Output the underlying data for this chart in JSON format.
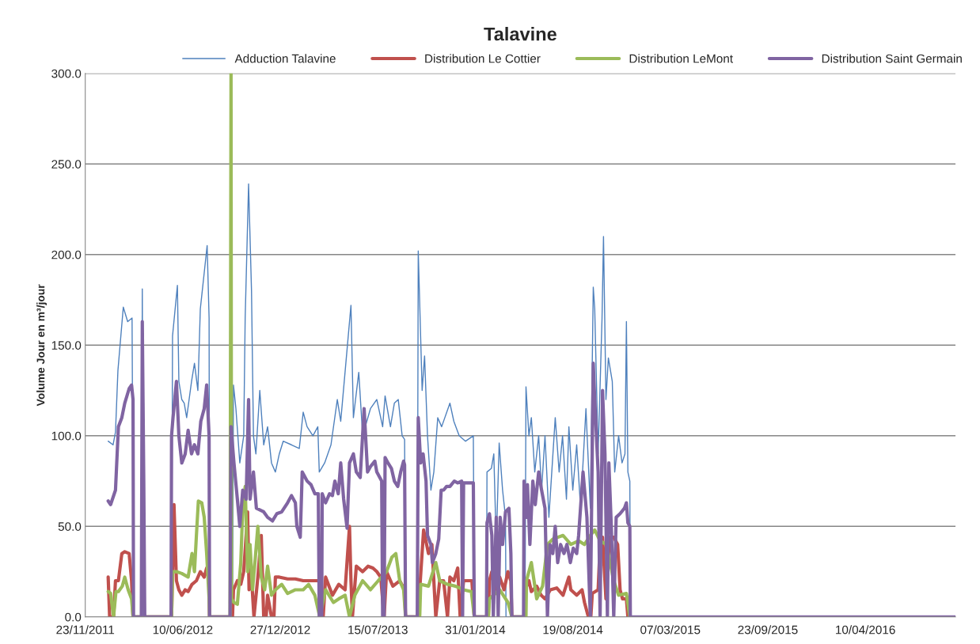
{
  "chart_data": {
    "type": "line",
    "title": "Talavine",
    "ylabel": "Volume Jour en m³/jour",
    "xlim": [
      "2011-11-23",
      "2016-10-12"
    ],
    "xticks": [
      {
        "value": "2011-11-23",
        "label": "23/11/2011"
      },
      {
        "value": "2012-06-10",
        "label": "10/06/2012"
      },
      {
        "value": "2012-12-27",
        "label": "27/12/2012"
      },
      {
        "value": "2013-07-15",
        "label": "15/07/2013"
      },
      {
        "value": "2014-01-31",
        "label": "31/01/2014"
      },
      {
        "value": "2014-08-19",
        "label": "19/08/2014"
      },
      {
        "value": "2015-03-07",
        "label": "07/03/2015"
      },
      {
        "value": "2015-09-23",
        "label": "23/09/2015"
      },
      {
        "value": "2016-04-10",
        "label": "10/04/2016"
      }
    ],
    "ylim": [
      0,
      300
    ],
    "yticks": [
      {
        "value": 0,
        "label": "0.0"
      },
      {
        "value": 50,
        "label": "50.0"
      },
      {
        "value": 100,
        "label": "100.0"
      },
      {
        "value": 150,
        "label": "150.0"
      },
      {
        "value": 200,
        "label": "200.0"
      },
      {
        "value": 250,
        "label": "250.0"
      },
      {
        "value": 300,
        "label": "300.0"
      }
    ],
    "grid": "y",
    "legend": "top",
    "marker": "none",
    "line_style": "solid",
    "series": [
      {
        "name": "Adduction Talavine",
        "color": "#4f81bd",
        "x": [
          "2012-01-09",
          "2012-01-19",
          "2012-01-24",
          "2012-01-29",
          "2012-02-09",
          "2012-02-18",
          "2012-02-27",
          "2012-03-01",
          "2012-03-17",
          "2012-03-19",
          "2012-03-21",
          "2012-05-18",
          "2012-05-20",
          "2012-05-30",
          "2012-06-02",
          "2012-06-08",
          "2012-06-13",
          "2012-06-18",
          "2012-06-28",
          "2012-07-04",
          "2012-07-11",
          "2012-07-16",
          "2012-07-24",
          "2012-07-30",
          "2012-08-03",
          "2012-08-04",
          "2012-09-20",
          "2012-09-22",
          "2012-09-27",
          "2012-10-05",
          "2012-10-13",
          "2012-10-16",
          "2012-10-23",
          "2012-10-29",
          "2012-11-02",
          "2012-11-07",
          "2012-11-15",
          "2012-11-23",
          "2012-12-01",
          "2012-12-09",
          "2012-12-17",
          "2012-12-25",
          "2013-01-02",
          "2013-01-19",
          "2013-02-04",
          "2013-02-12",
          "2013-02-20",
          "2013-03-04",
          "2013-03-14",
          "2013-03-17",
          "2013-03-28",
          "2013-04-10",
          "2013-04-23",
          "2013-04-30",
          "2013-05-21",
          "2013-05-26",
          "2013-06-06",
          "2013-06-14",
          "2013-06-30",
          "2013-07-13",
          "2013-07-25",
          "2013-07-30",
          "2013-08-10",
          "2013-08-18",
          "2013-08-26",
          "2013-09-03",
          "2013-09-08",
          "2013-09-10",
          "2013-10-04",
          "2013-10-06",
          "2013-10-14",
          "2013-10-19",
          "2013-10-25",
          "2013-11-01",
          "2013-11-07",
          "2013-11-15",
          "2013-11-23",
          "2013-12-10",
          "2013-12-18",
          "2013-12-29",
          "2014-01-11",
          "2014-01-27",
          "2014-01-29",
          "2014-02-23",
          "2014-02-24",
          "2014-03-05",
          "2014-03-10",
          "2014-03-15",
          "2014-03-21",
          "2014-03-28",
          "2014-04-03",
          "2014-04-04",
          "2014-05-13",
          "2014-05-15",
          "2014-05-21",
          "2014-05-26",
          "2014-06-02",
          "2014-06-10",
          "2014-06-16",
          "2014-06-23",
          "2014-07-01",
          "2014-07-14",
          "2014-07-22",
          "2014-07-29",
          "2014-08-06",
          "2014-08-11",
          "2014-08-19",
          "2014-08-27",
          "2014-09-04",
          "2014-09-15",
          "2014-09-24",
          "2014-09-30",
          "2014-10-03",
          "2014-10-10",
          "2014-10-18",
          "2014-10-21",
          "2014-10-26",
          "2014-10-31",
          "2014-11-08",
          "2014-11-13",
          "2014-11-21",
          "2014-11-28",
          "2014-12-04",
          "2014-12-07",
          "2014-12-10",
          "2014-12-14",
          "2014-12-15"
        ],
        "values": [
          97,
          95,
          102,
          136,
          171,
          163,
          165,
          0,
          0,
          181,
          0,
          0,
          155,
          183,
          130,
          120,
          118,
          110,
          130,
          140,
          125,
          170,
          190,
          205,
          165,
          0,
          0,
          128,
          115,
          85,
          100,
          165,
          239,
          180,
          100,
          90,
          125,
          95,
          105,
          85,
          80,
          90,
          97,
          95,
          93,
          113,
          105,
          100,
          105,
          80,
          85,
          95,
          120,
          108,
          172,
          110,
          135,
          100,
          115,
          120,
          105,
          122,
          105,
          118,
          120,
          100,
          98,
          0,
          0,
          202,
          125,
          144,
          100,
          70,
          80,
          110,
          105,
          118,
          108,
          100,
          97,
          100,
          0,
          0,
          80,
          82,
          90,
          40,
          96,
          70,
          55,
          0,
          0,
          127,
          100,
          110,
          80,
          100,
          70,
          100,
          55,
          110,
          80,
          100,
          65,
          105,
          70,
          95,
          60,
          115,
          60,
          182,
          170,
          90,
          165,
          210,
          120,
          143,
          130,
          80,
          100,
          85,
          90,
          163,
          80,
          75,
          0
        ]
      },
      {
        "name": "Distribution Le Cottier",
        "color": "#c0504d",
        "x": [
          "2012-01-09",
          "2012-01-12",
          "2012-01-20",
          "2012-01-24",
          "2012-01-30",
          "2012-02-06",
          "2012-02-12",
          "2012-02-21",
          "2012-02-26",
          "2012-02-29",
          "2012-05-18",
          "2012-05-20",
          "2012-05-23",
          "2012-05-28",
          "2012-06-02",
          "2012-06-08",
          "2012-06-15",
          "2012-06-21",
          "2012-06-29",
          "2012-07-08",
          "2012-07-16",
          "2012-07-24",
          "2012-07-29",
          "2012-08-03",
          "2012-08-04",
          "2012-09-20",
          "2012-09-22",
          "2012-09-30",
          "2012-10-07",
          "2012-10-13",
          "2012-10-18",
          "2012-10-21",
          "2012-10-24",
          "2012-10-29",
          "2012-11-03",
          "2012-11-11",
          "2012-11-18",
          "2012-11-23",
          "2012-11-28",
          "2012-12-01",
          "2012-12-09",
          "2012-12-14",
          "2012-12-17",
          "2012-12-25",
          "2013-01-11",
          "2013-01-27",
          "2013-02-12",
          "2013-02-28",
          "2013-03-17",
          "2013-03-20",
          "2013-03-25",
          "2013-03-30",
          "2013-04-13",
          "2013-04-26",
          "2013-05-09",
          "2013-05-18",
          "2013-05-21",
          "2013-05-24",
          "2013-06-01",
          "2013-06-14",
          "2013-06-25",
          "2013-07-05",
          "2013-07-13",
          "2013-07-21",
          "2013-07-28",
          "2013-08-02",
          "2013-08-15",
          "2013-08-29",
          "2013-09-08",
          "2013-09-10",
          "2013-10-08",
          "2013-10-09",
          "2013-10-17",
          "2013-10-27",
          "2013-11-03",
          "2013-11-11",
          "2013-11-19",
          "2013-11-27",
          "2013-12-05",
          "2013-12-10",
          "2013-12-18",
          "2013-12-26",
          "2013-12-31",
          "2014-01-07",
          "2014-01-16",
          "2014-01-24",
          "2014-01-29",
          "2014-02-27",
          "2014-03-01",
          "2014-03-06",
          "2014-03-12",
          "2014-03-22",
          "2014-03-31",
          "2014-04-08",
          "2014-04-14",
          "2014-04-16",
          "2014-05-11",
          "2014-05-13",
          "2014-05-21",
          "2014-05-26",
          "2014-06-06",
          "2014-06-15",
          "2014-06-23",
          "2014-07-04",
          "2014-07-17",
          "2014-07-30",
          "2014-08-11",
          "2014-08-15",
          "2014-08-27",
          "2014-09-07",
          "2014-09-12",
          "2014-09-20",
          "2014-09-25",
          "2014-09-28",
          "2014-10-10",
          "2014-10-14",
          "2014-10-19",
          "2014-10-26",
          "2014-11-03",
          "2014-11-11",
          "2014-11-19",
          "2014-11-24",
          "2014-11-29",
          "2014-12-07",
          "2014-12-10",
          "2014-12-15"
        ],
        "values": [
          22,
          0,
          0,
          20,
          20,
          35,
          36,
          35,
          20,
          0,
          0,
          25,
          62,
          20,
          15,
          12,
          15,
          14,
          18,
          20,
          25,
          22,
          27,
          20,
          0,
          0,
          15,
          20,
          18,
          25,
          45,
          58,
          15,
          22,
          0,
          22,
          45,
          0,
          0,
          12,
          0,
          0,
          22,
          22,
          21,
          21,
          20,
          20,
          20,
          0,
          0,
          22,
          12,
          18,
          15,
          50,
          20,
          0,
          28,
          25,
          28,
          27,
          25,
          22,
          0,
          25,
          17,
          20,
          15,
          0,
          0,
          15,
          48,
          35,
          40,
          0,
          20,
          20,
          0,
          22,
          20,
          27,
          0,
          20,
          20,
          20,
          0,
          0,
          20,
          25,
          15,
          22,
          15,
          25,
          20,
          0,
          0,
          15,
          20,
          14,
          17,
          12,
          10,
          15,
          16,
          12,
          22,
          15,
          12,
          15,
          8,
          0,
          0,
          13,
          15,
          40,
          44,
          10,
          44,
          44,
          40,
          15,
          10,
          10,
          0,
          0
        ]
      },
      {
        "name": "Distribution LeMont",
        "color": "#9bbb59",
        "x": [
          "2012-01-09",
          "2012-01-14",
          "2012-01-20",
          "2012-01-25",
          "2012-01-30",
          "2012-02-07",
          "2012-02-12",
          "2012-02-19",
          "2012-02-26",
          "2012-02-29",
          "2012-05-18",
          "2012-05-20",
          "2012-05-28",
          "2012-06-08",
          "2012-06-21",
          "2012-06-29",
          "2012-07-04",
          "2012-07-08",
          "2012-07-12",
          "2012-07-19",
          "2012-07-24",
          "2012-07-29",
          "2012-08-03",
          "2012-08-04",
          "2012-09-15",
          "2012-09-17",
          "2012-09-18",
          "2012-09-23",
          "2012-09-30",
          "2012-10-07",
          "2012-10-11",
          "2012-10-16",
          "2012-10-21",
          "2012-10-26",
          "2012-10-31",
          "2012-11-05",
          "2012-11-11",
          "2012-11-18",
          "2012-11-25",
          "2012-12-01",
          "2012-12-09",
          "2012-12-17",
          "2012-12-30",
          "2013-01-11",
          "2013-01-27",
          "2013-02-12",
          "2013-02-23",
          "2013-03-08",
          "2013-03-18",
          "2013-03-30",
          "2013-04-15",
          "2013-04-26",
          "2013-05-09",
          "2013-05-18",
          "2013-05-29",
          "2013-06-14",
          "2013-06-30",
          "2013-07-16",
          "2013-08-02",
          "2013-08-13",
          "2013-08-21",
          "2013-08-29",
          "2013-09-06",
          "2013-09-10",
          "2013-10-09",
          "2013-10-11",
          "2013-10-27",
          "2013-11-11",
          "2013-11-19",
          "2013-12-05",
          "2013-12-21",
          "2014-01-07",
          "2014-01-23",
          "2014-01-29",
          "2014-02-27",
          "2014-03-01",
          "2014-03-22",
          "2014-04-08",
          "2014-04-16",
          "2014-05-15",
          "2014-05-16",
          "2014-05-26",
          "2014-06-06",
          "2014-06-18",
          "2014-06-28",
          "2014-07-09",
          "2014-07-30",
          "2014-08-15",
          "2014-08-31",
          "2014-09-12",
          "2014-09-24",
          "2014-10-03",
          "2014-10-14",
          "2014-10-27",
          "2014-11-11",
          "2014-11-21",
          "2014-12-07",
          "2014-12-14"
        ],
        "values": [
          14,
          13,
          0,
          14,
          14,
          17,
          22,
          15,
          10,
          0,
          0,
          25,
          25,
          24,
          22,
          35,
          25,
          45,
          64,
          63,
          55,
          35,
          10,
          0,
          0,
          300,
          10,
          8,
          7,
          30,
          60,
          72,
          25,
          40,
          15,
          30,
          50,
          22,
          15,
          28,
          12,
          15,
          18,
          13,
          15,
          15,
          18,
          12,
          0,
          15,
          8,
          10,
          12,
          0,
          12,
          20,
          15,
          20,
          25,
          33,
          35,
          20,
          15,
          0,
          0,
          18,
          17,
          30,
          20,
          18,
          17,
          15,
          14,
          0,
          0,
          10,
          15,
          8,
          0,
          0,
          20,
          30,
          10,
          17,
          40,
          43,
          45,
          40,
          42,
          40,
          45,
          48,
          42,
          40,
          20,
          12,
          13,
          0
        ]
      },
      {
        "name": "Distribution Saint Germain",
        "color": "#8064a2",
        "x": [
          "2012-01-09",
          "2012-01-14",
          "2012-01-24",
          "2012-01-30",
          "2012-02-06",
          "2012-02-12",
          "2012-02-21",
          "2012-02-26",
          "2012-02-29",
          "2012-03-01",
          "2012-03-17",
          "2012-03-19",
          "2012-03-22",
          "2012-03-24",
          "2012-05-17",
          "2012-05-18",
          "2012-05-21",
          "2012-05-28",
          "2012-06-02",
          "2012-06-08",
          "2012-06-15",
          "2012-06-21",
          "2012-06-28",
          "2012-07-04",
          "2012-07-11",
          "2012-07-17",
          "2012-07-24",
          "2012-07-29",
          "2012-08-03",
          "2012-08-04",
          "2012-09-15",
          "2012-09-17",
          "2012-09-23",
          "2012-09-30",
          "2012-10-05",
          "2012-10-11",
          "2012-10-18",
          "2012-10-23",
          "2012-10-26",
          "2012-11-02",
          "2012-11-08",
          "2012-11-23",
          "2012-12-01",
          "2012-12-11",
          "2012-12-20",
          "2012-12-30",
          "2013-01-11",
          "2013-01-19",
          "2013-01-27",
          "2013-01-30",
          "2013-02-06",
          "2013-02-10",
          "2013-02-20",
          "2013-02-28",
          "2013-03-08",
          "2013-03-15",
          "2013-03-17",
          "2013-03-22",
          "2013-03-23",
          "2013-03-30",
          "2013-04-07",
          "2013-04-13",
          "2013-04-18",
          "2013-04-25",
          "2013-04-30",
          "2013-05-06",
          "2013-05-13",
          "2013-05-18",
          "2013-05-26",
          "2013-06-01",
          "2013-06-09",
          "2013-06-17",
          "2013-06-24",
          "2013-06-30",
          "2013-07-09",
          "2013-07-13",
          "2013-07-23",
          "2013-07-25",
          "2013-07-28",
          "2013-07-30",
          "2013-08-05",
          "2013-08-12",
          "2013-08-18",
          "2013-08-25",
          "2013-08-31",
          "2013-09-06",
          "2013-09-08",
          "2013-09-10",
          "2013-10-04",
          "2013-10-06",
          "2013-10-11",
          "2013-10-16",
          "2013-10-22",
          "2013-10-25",
          "2013-11-01",
          "2013-11-04",
          "2013-11-11",
          "2013-11-17",
          "2013-11-22",
          "2013-11-27",
          "2013-12-03",
          "2013-12-10",
          "2013-12-19",
          "2013-12-26",
          "2014-01-03",
          "2014-01-05",
          "2014-01-07",
          "2014-01-27",
          "2014-01-29",
          "2014-02-23",
          "2014-02-24",
          "2014-03-01",
          "2014-03-06",
          "2014-03-09",
          "2014-03-15",
          "2014-03-19",
          "2014-03-23",
          "2014-03-28",
          "2014-04-03",
          "2014-04-10",
          "2014-04-14",
          "2014-04-16",
          "2014-05-10",
          "2014-05-11",
          "2014-05-15",
          "2014-05-18",
          "2014-05-23",
          "2014-05-29",
          "2014-06-03",
          "2014-06-10",
          "2014-06-16",
          "2014-06-23",
          "2014-06-28",
          "2014-07-03",
          "2014-07-09",
          "2014-07-14",
          "2014-07-19",
          "2014-07-25",
          "2014-08-01",
          "2014-08-07",
          "2014-08-14",
          "2014-08-20",
          "2014-08-27",
          "2014-08-31",
          "2014-09-09",
          "2014-09-17",
          "2014-09-24",
          "2014-09-30",
          "2014-10-03",
          "2014-10-10",
          "2014-10-14",
          "2014-10-19",
          "2014-10-24",
          "2014-10-29",
          "2014-11-01",
          "2014-11-06",
          "2014-11-11",
          "2014-11-16",
          "2014-11-24",
          "2014-12-03",
          "2014-12-07",
          "2014-12-10",
          "2014-12-14",
          "2014-12-15",
          "2016-10-12"
        ],
        "values": [
          64,
          62,
          70,
          105,
          110,
          118,
          126,
          128,
          120,
          0,
          0,
          163,
          75,
          0,
          0,
          100,
          110,
          130,
          100,
          85,
          90,
          103,
          90,
          95,
          90,
          108,
          115,
          128,
          100,
          0,
          0,
          105,
          85,
          65,
          50,
          70,
          65,
          120,
          65,
          80,
          60,
          58,
          55,
          53,
          57,
          58,
          63,
          67,
          63,
          50,
          44,
          80,
          75,
          73,
          68,
          68,
          0,
          0,
          68,
          63,
          68,
          67,
          75,
          68,
          85,
          65,
          49,
          85,
          90,
          80,
          77,
          115,
          80,
          83,
          86,
          80,
          75,
          0,
          0,
          88,
          85,
          82,
          75,
          72,
          80,
          86,
          84,
          0,
          0,
          110,
          85,
          90,
          75,
          45,
          40,
          30,
          35,
          43,
          70,
          70,
          72,
          72,
          75,
          74,
          75,
          0,
          74,
          74,
          0,
          0,
          52,
          57,
          45,
          0,
          55,
          0,
          55,
          40,
          58,
          60,
          35,
          0,
          0,
          75,
          55,
          73,
          40,
          75,
          62,
          80,
          70,
          60,
          0,
          40,
          35,
          50,
          30,
          40,
          35,
          40,
          30,
          38,
          35,
          45,
          80,
          55,
          0,
          140,
          120,
          80,
          0,
          125,
          90,
          0,
          85,
          50,
          0,
          55,
          57,
          60,
          63,
          52,
          50,
          0,
          0
        ]
      }
    ]
  }
}
